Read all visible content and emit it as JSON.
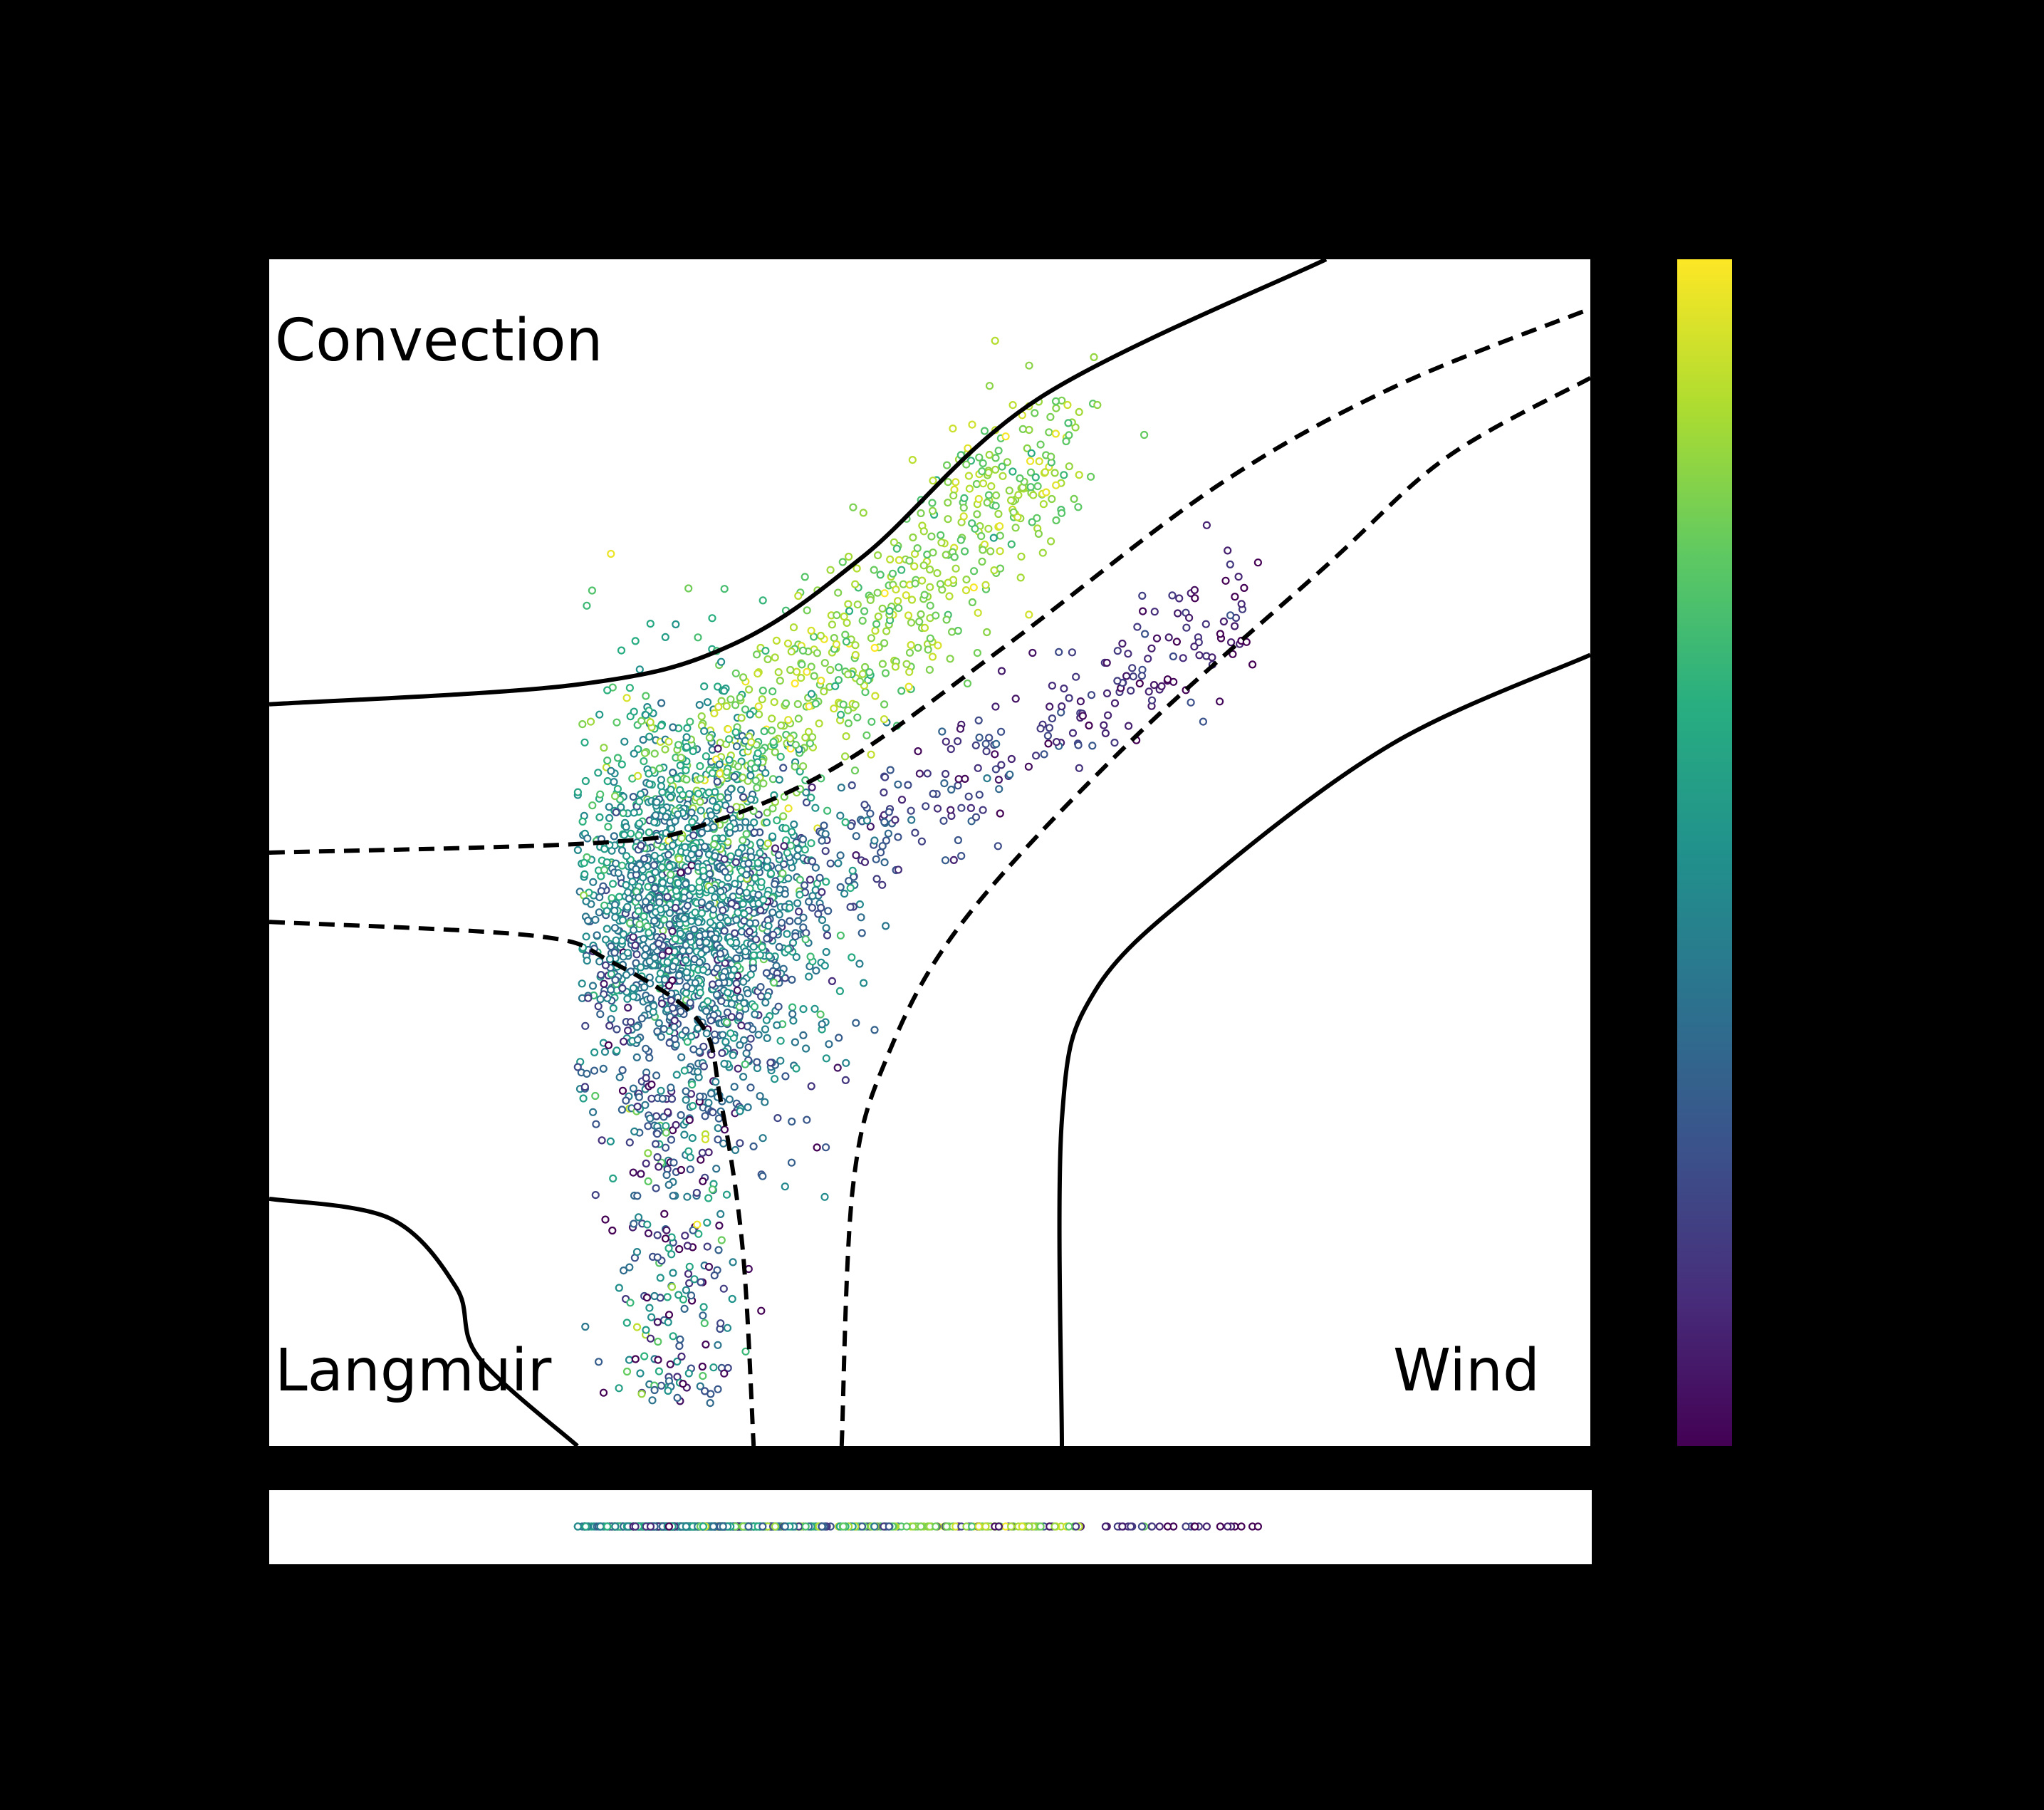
{
  "chart_data": {
    "type": "scatter",
    "title": "",
    "xlabel": "",
    "ylabel": "",
    "xlim": [
      -3,
      3
    ],
    "ylim": [
      -3,
      3
    ],
    "grid": false,
    "regions": {
      "convection_label": "Convection",
      "langmuir_label": "Langmuir",
      "wind_label": "Wind"
    },
    "colormap": "viridis",
    "colorbar": {
      "range": [
        0,
        1
      ],
      "ticks": []
    },
    "scatter_summary": {
      "cluster_center": [
        -1.1,
        -0.3
      ],
      "cluster_spread": [
        0.3,
        0.5
      ],
      "extent_x": [
        -1.6,
        1.5
      ],
      "extent_y": [
        -3.0,
        2.6
      ],
      "approximate_count": 3000
    },
    "boundaries": [
      {
        "name": "convection-solid",
        "style": "solid",
        "points": [
          [
            -3,
            0.75
          ],
          [
            -1.6,
            0.85
          ],
          [
            -0.9,
            1.05
          ],
          [
            -0.3,
            1.5
          ],
          [
            0.5,
            2.3
          ],
          [
            1.8,
            3.0
          ]
        ]
      },
      {
        "name": "langmuir-solid",
        "style": "solid",
        "points": [
          [
            -3,
            -1.75
          ],
          [
            -2.45,
            -1.85
          ],
          [
            -2.15,
            -2.2
          ],
          [
            -2.05,
            -2.55
          ],
          [
            -1.6,
            -3.0
          ]
        ]
      },
      {
        "name": "wind-solid",
        "style": "solid",
        "points": [
          [
            0.6,
            -3.0
          ],
          [
            0.6,
            -1.35
          ],
          [
            0.75,
            -0.7
          ],
          [
            1.25,
            -0.15
          ],
          [
            2.1,
            0.55
          ],
          [
            3.0,
            1.0
          ]
        ]
      },
      {
        "name": "upper-dashed",
        "style": "dashed",
        "points": [
          [
            -3,
            0.0
          ],
          [
            -1.5,
            0.05
          ],
          [
            -1.0,
            0.15
          ],
          [
            -0.4,
            0.45
          ],
          [
            0.35,
            1.05
          ],
          [
            1.3,
            1.85
          ],
          [
            2.1,
            2.35
          ],
          [
            3.0,
            2.75
          ]
        ]
      },
      {
        "name": "lower-dashed",
        "style": "dashed",
        "points": [
          [
            -3,
            -0.35
          ],
          [
            -1.8,
            -0.42
          ],
          [
            -1.45,
            -0.55
          ],
          [
            -1.05,
            -0.85
          ],
          [
            -0.95,
            -1.25
          ],
          [
            -0.85,
            -2.0
          ],
          [
            -0.8,
            -3.0
          ]
        ]
      },
      {
        "name": "right-dashed",
        "style": "dashed",
        "points": [
          [
            -0.4,
            -3.0
          ],
          [
            -0.35,
            -1.7
          ],
          [
            -0.2,
            -1.05
          ],
          [
            0.15,
            -0.35
          ],
          [
            0.9,
            0.55
          ],
          [
            1.8,
            1.45
          ],
          [
            2.35,
            2.0
          ],
          [
            3.0,
            2.4
          ]
        ]
      }
    ],
    "marginal_strip": {
      "type": "rug",
      "axis": "x",
      "extent_x": [
        -1.6,
        1.5
      ]
    }
  }
}
